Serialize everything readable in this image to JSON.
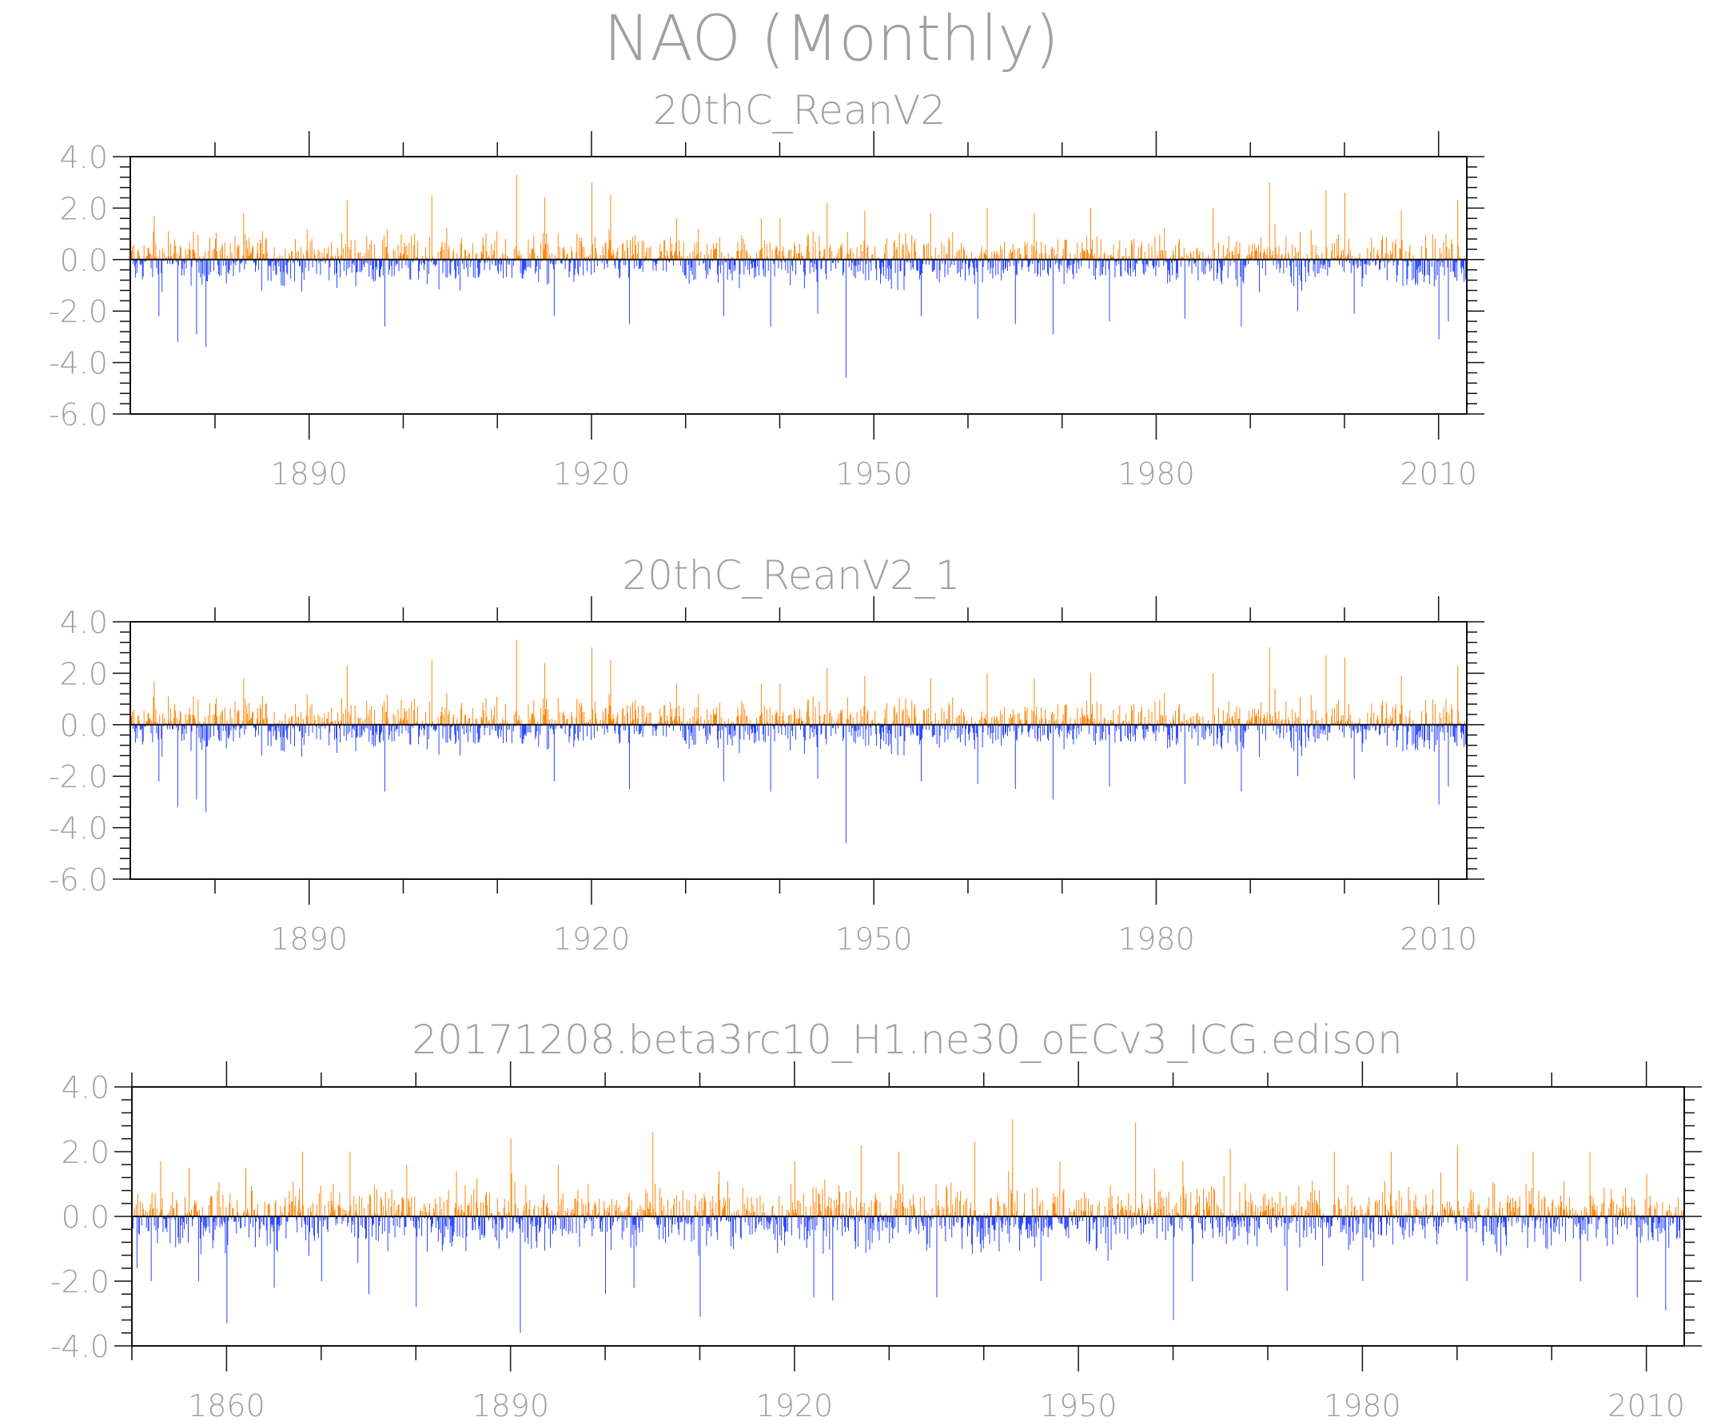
{
  "figure": {
    "title": "NAO (Monthly)"
  },
  "colors": {
    "positive": "#ff8000",
    "negative": "#1e3cff",
    "axis": "#111111",
    "text": "#a0a0a0",
    "faint": "#d8d8d8"
  },
  "chart_data": [
    {
      "type": "bar",
      "title": "20thC_ReanV2",
      "x_range": [
        1871,
        2013
      ],
      "ylim": [
        -6.0,
        4.0
      ],
      "yticks": [
        "4.0",
        "2.0",
        "0.0",
        "-2.0",
        "-4.0",
        "-6.0"
      ],
      "xticks": [
        "1890",
        "1920",
        "1950",
        "1980",
        "2010"
      ],
      "series": [
        {
          "values_positive_peaks": [
            [
              1873.5,
              1.7
            ],
            [
              1875,
              1.1
            ],
            [
              1880,
              0.8
            ],
            [
              1883,
              1.8
            ],
            [
              1885,
              1.1
            ],
            [
              1894,
              2.3
            ],
            [
              1903,
              2.5
            ],
            [
              1912,
              3.3
            ],
            [
              1915,
              2.4
            ],
            [
              1920,
              3.0
            ],
            [
              1922,
              2.5
            ],
            [
              1929,
              1.6
            ],
            [
              1938,
              1.6
            ],
            [
              1940,
              1.6
            ],
            [
              1945,
              2.2
            ],
            [
              1949,
              1.9
            ],
            [
              1956,
              1.8
            ],
            [
              1962,
              2.0
            ],
            [
              1967,
              1.8
            ],
            [
              1973,
              2.0
            ],
            [
              1983,
              1.6
            ],
            [
              1986,
              2.0
            ],
            [
              1989,
              3.1
            ],
            [
              1992,
              3.0
            ],
            [
              1995,
              2.8
            ],
            [
              1998,
              2.7
            ],
            [
              2000,
              2.6
            ],
            [
              2006,
              1.9
            ],
            [
              2012,
              2.3
            ]
          ],
          "values_negative_peaks": [
            [
              1871.5,
              -0.7
            ],
            [
              1874,
              -2.2
            ],
            [
              1876,
              -3.2
            ],
            [
              1878,
              -2.9
            ],
            [
              1879,
              -3.4
            ],
            [
              1887,
              -1.0
            ],
            [
              1898,
              -2.6
            ],
            [
              1906,
              -1.2
            ],
            [
              1916,
              -2.2
            ],
            [
              1924,
              -2.5
            ],
            [
              1934,
              -2.2
            ],
            [
              1939,
              -2.6
            ],
            [
              1944,
              -2.1
            ],
            [
              1947,
              -4.6
            ],
            [
              1955,
              -2.2
            ],
            [
              1961,
              -2.3
            ],
            [
              1965,
              -2.5
            ],
            [
              1969,
              -2.9
            ],
            [
              1975,
              -2.4
            ],
            [
              1983,
              -2.3
            ],
            [
              1989,
              -2.6
            ],
            [
              1995,
              -2.0
            ],
            [
              2001,
              -2.1
            ],
            [
              2010,
              -3.1
            ],
            [
              2011,
              -2.4
            ]
          ]
        }
      ]
    },
    {
      "type": "bar",
      "title": "20thC_ReanV2_1",
      "x_range": [
        1871,
        2013
      ],
      "ylim": [
        -6.0,
        4.0
      ],
      "yticks": [
        "4.0",
        "2.0",
        "0.0",
        "-2.0",
        "-4.0",
        "-6.0"
      ],
      "xticks": [
        "1890",
        "1920",
        "1950",
        "1980",
        "2010"
      ],
      "series": [
        {
          "values_positive_peaks": [
            [
              1873.5,
              1.7
            ],
            [
              1875,
              1.1
            ],
            [
              1880,
              0.8
            ],
            [
              1883,
              1.8
            ],
            [
              1885,
              1.1
            ],
            [
              1894,
              2.3
            ],
            [
              1903,
              2.5
            ],
            [
              1912,
              3.3
            ],
            [
              1915,
              2.4
            ],
            [
              1920,
              3.0
            ],
            [
              1922,
              2.5
            ],
            [
              1929,
              1.6
            ],
            [
              1938,
              1.6
            ],
            [
              1940,
              1.6
            ],
            [
              1945,
              2.2
            ],
            [
              1949,
              1.9
            ],
            [
              1956,
              1.8
            ],
            [
              1962,
              2.0
            ],
            [
              1967,
              1.8
            ],
            [
              1973,
              2.0
            ],
            [
              1983,
              1.6
            ],
            [
              1986,
              2.0
            ],
            [
              1989,
              3.1
            ],
            [
              1992,
              3.0
            ],
            [
              1995,
              2.8
            ],
            [
              1998,
              2.7
            ],
            [
              2000,
              2.6
            ],
            [
              2006,
              1.9
            ],
            [
              2012,
              2.3
            ]
          ],
          "values_negative_peaks": [
            [
              1871.5,
              -0.7
            ],
            [
              1874,
              -2.2
            ],
            [
              1876,
              -3.2
            ],
            [
              1878,
              -2.9
            ],
            [
              1879,
              -3.4
            ],
            [
              1887,
              -1.0
            ],
            [
              1898,
              -2.6
            ],
            [
              1906,
              -1.2
            ],
            [
              1916,
              -2.2
            ],
            [
              1924,
              -2.5
            ],
            [
              1934,
              -2.2
            ],
            [
              1939,
              -2.6
            ],
            [
              1944,
              -2.1
            ],
            [
              1947,
              -4.6
            ],
            [
              1955,
              -2.2
            ],
            [
              1961,
              -2.3
            ],
            [
              1965,
              -2.5
            ],
            [
              1969,
              -2.9
            ],
            [
              1975,
              -2.4
            ],
            [
              1983,
              -2.3
            ],
            [
              1989,
              -2.6
            ],
            [
              1995,
              -2.0
            ],
            [
              2001,
              -2.1
            ],
            [
              2010,
              -3.1
            ],
            [
              2011,
              -2.4
            ]
          ]
        }
      ]
    },
    {
      "type": "bar",
      "title": "20171208.beta3rc10_H1.ne30_oECv3_ICG.edison",
      "x_range": [
        1850,
        2014
      ],
      "ylim": [
        -4.0,
        4.0
      ],
      "yticks": [
        "4.0",
        "2.0",
        "0.0",
        "-2.0",
        "-4.0"
      ],
      "xticks": [
        "1860",
        "1890",
        "1920",
        "1950",
        "1980",
        "2010"
      ],
      "series": [
        {
          "values_positive_peaks": [
            [
              1853,
              1.7
            ],
            [
              1856,
              1.5
            ],
            [
              1862,
              1.5
            ],
            [
              1868,
              2.0
            ],
            [
              1873,
              2.0
            ],
            [
              1879,
              1.6
            ],
            [
              1890,
              2.4
            ],
            [
              1895,
              1.6
            ],
            [
              1905,
              2.6
            ],
            [
              1912,
              1.4
            ],
            [
              1920,
              1.7
            ],
            [
              1927,
              2.2
            ],
            [
              1931,
              2.0
            ],
            [
              1939,
              2.3
            ],
            [
              1943,
              3.0
            ],
            [
              1948,
              1.7
            ],
            [
              1956,
              2.9
            ],
            [
              1961,
              1.7
            ],
            [
              1966,
              2.1
            ],
            [
              1972,
              1.8
            ],
            [
              1977,
              2.0
            ],
            [
              1983,
              2.0
            ],
            [
              1990,
              2.2
            ],
            [
              1998,
              2.0
            ],
            [
              2004,
              2.0
            ],
            [
              2010,
              1.3
            ]
          ],
          "values_negative_peaks": [
            [
              1850.5,
              -1.6
            ],
            [
              1852,
              -2.0
            ],
            [
              1857,
              -2.0
            ],
            [
              1860,
              -3.3
            ],
            [
              1865,
              -2.2
            ],
            [
              1870,
              -2.0
            ],
            [
              1875,
              -2.4
            ],
            [
              1880,
              -2.8
            ],
            [
              1891,
              -3.6
            ],
            [
              1900,
              -2.4
            ],
            [
              1903,
              -2.2
            ],
            [
              1910,
              -3.1
            ],
            [
              1922,
              -2.5
            ],
            [
              1924,
              -2.6
            ],
            [
              1935,
              -2.5
            ],
            [
              1946,
              -2.0
            ],
            [
              1960,
              -3.2
            ],
            [
              1962,
              -2.0
            ],
            [
              1972,
              -2.3
            ],
            [
              1980,
              -2.0
            ],
            [
              1991,
              -2.0
            ],
            [
              2003,
              -2.0
            ],
            [
              2009,
              -2.5
            ],
            [
              2012,
              -2.9
            ]
          ]
        }
      ]
    }
  ]
}
